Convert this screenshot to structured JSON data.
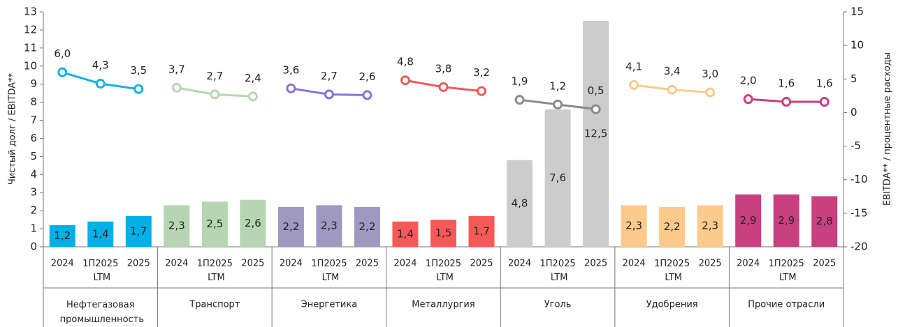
{
  "chart_data": {
    "type": "bar_line",
    "y_label": "Чистый долг / EBITDA**",
    "y2_label": "EBITDA** / процентные расходы",
    "ylim": [
      0,
      13
    ],
    "yticks": [
      0,
      1,
      2,
      3,
      4,
      5,
      6,
      7,
      8,
      9,
      10,
      11,
      12,
      13
    ],
    "y2lim": [
      -20,
      15
    ],
    "y2ticks": [
      -20,
      -15,
      -10,
      -5,
      0,
      5,
      10,
      15
    ],
    "periods": [
      "2024",
      "1П2025 LTM",
      "2025"
    ],
    "groups": [
      {
        "name": "Нефтегазовая промышленность",
        "bar_color": "#00b0e6",
        "line_color": "#12b1e3",
        "bar_values": [
          1.2,
          1.4,
          1.7
        ],
        "bar_value_labels": [
          "1,2",
          "1,4",
          "1,7"
        ],
        "line_values": [
          6,
          4.3,
          3.5
        ],
        "line_value_labels": [
          "6,0",
          "4,3",
          "3,5"
        ]
      },
      {
        "name": "Транспорт",
        "bar_color": "#b6d5b2",
        "line_color": "#b6d5b2",
        "bar_values": [
          2.3,
          2.5,
          2.6
        ],
        "bar_value_labels": [
          "2,3",
          "2,5",
          "2,6"
        ],
        "line_values": [
          3.7,
          2.7,
          2.4
        ],
        "line_value_labels": [
          "3,7",
          "2,7",
          "2,4"
        ]
      },
      {
        "name": "Энергетика",
        "bar_color": "#9f98c0",
        "line_color": "#8b6fd8",
        "bar_values": [
          2.2,
          2.3,
          2.2
        ],
        "bar_value_labels": [
          "2,2",
          "2,3",
          "2,2"
        ],
        "line_values": [
          3.6,
          2.7,
          2.6
        ],
        "line_value_labels": [
          "3,6",
          "2,7",
          "2,6"
        ]
      },
      {
        "name": "Металлургия",
        "bar_color": "#f75959",
        "line_color": "#ee5a5a",
        "bar_values": [
          1.4,
          1.5,
          1.7
        ],
        "bar_value_labels": [
          "1,4",
          "1,5",
          "1,7"
        ],
        "line_values": [
          4.8,
          3.8,
          3.2
        ],
        "line_value_labels": [
          "4,8",
          "3,8",
          "3,2"
        ]
      },
      {
        "name": "Уголь",
        "bar_color": "#cccccc",
        "line_color": "#8a8a8a",
        "bar_values": [
          4.8,
          7.6,
          12.5
        ],
        "bar_value_labels": [
          "4,8",
          "7,6",
          "12,5"
        ],
        "line_values": [
          1.9,
          1.2,
          0.5
        ],
        "line_value_labels": [
          "1,9",
          "1,2",
          "0,5"
        ]
      },
      {
        "name": "Удобрения",
        "bar_color": "#fcca8a",
        "line_color": "#fcca8a",
        "bar_values": [
          2.3,
          2.2,
          2.3
        ],
        "bar_value_labels": [
          "2,3",
          "2,2",
          "2,3"
        ],
        "line_values": [
          4.1,
          3.4,
          3
        ],
        "line_value_labels": [
          "4,1",
          "3,4",
          "3,0"
        ]
      },
      {
        "name": "Прочие отрасли",
        "bar_color": "#c8407f",
        "line_color": "#c8407f",
        "bar_values": [
          2.9,
          2.9,
          2.8
        ],
        "bar_value_labels": [
          "2,9",
          "2,9",
          "2,8"
        ],
        "line_values": [
          2,
          1.6,
          1.6
        ],
        "line_value_labels": [
          "2,0",
          "1,6",
          "1,6"
        ]
      }
    ]
  }
}
